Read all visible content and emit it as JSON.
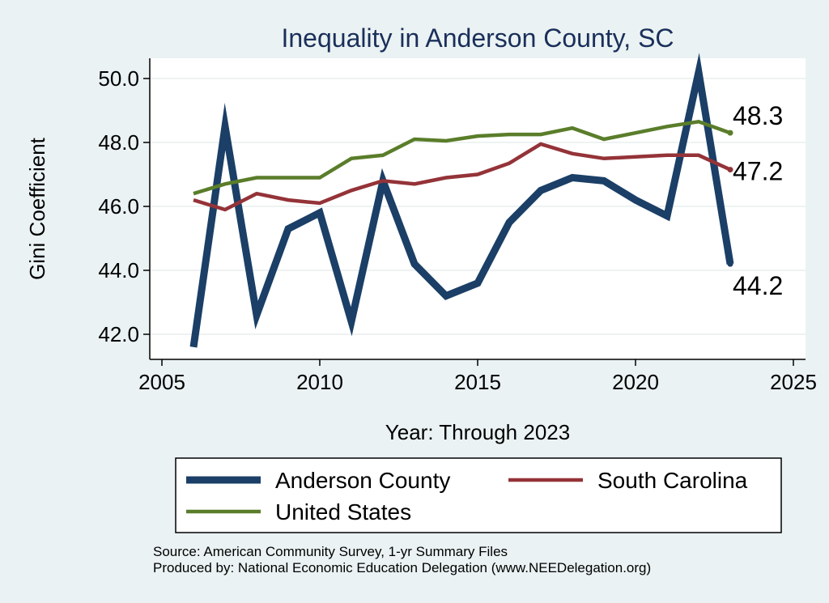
{
  "chart_data": {
    "type": "line",
    "title": "Inequality in Anderson County, SC",
    "xlabel": "Year: Through 2023",
    "ylabel": "Gini Coefficient",
    "xlim": [
      2005,
      2025
    ],
    "ylim": [
      41.5,
      50.6
    ],
    "xticks": [
      2005,
      2010,
      2015,
      2020,
      2025
    ],
    "yticks": [
      42.0,
      44.0,
      46.0,
      48.0,
      50.0
    ],
    "ytick_labels": [
      "42.0",
      "44.0",
      "46.0",
      "48.0",
      "50.0"
    ],
    "grid": true,
    "legend_position": "bottom",
    "series": [
      {
        "name": "Anderson County",
        "color": "#1b3f66",
        "width": 9,
        "end_label": "44.2",
        "x": [
          2006,
          2007,
          2008,
          2009,
          2010,
          2011,
          2012,
          2013,
          2014,
          2015,
          2016,
          2017,
          2018,
          2019,
          2020,
          2021,
          2022,
          2023
        ],
        "values": [
          41.6,
          48.5,
          42.6,
          45.3,
          45.8,
          42.4,
          46.8,
          44.2,
          43.2,
          43.6,
          45.5,
          46.5,
          46.9,
          46.8,
          46.2,
          45.7,
          50.2,
          44.2
        ]
      },
      {
        "name": "South Carolina",
        "color": "#943338",
        "width": 4.5,
        "end_label": "47.2",
        "x": [
          2006,
          2007,
          2008,
          2009,
          2010,
          2011,
          2012,
          2013,
          2014,
          2015,
          2016,
          2017,
          2018,
          2019,
          2020,
          2021,
          2022,
          2023
        ],
        "values": [
          46.2,
          45.9,
          46.4,
          46.2,
          46.1,
          46.5,
          46.8,
          46.7,
          46.9,
          47.0,
          47.35,
          47.95,
          47.65,
          47.5,
          47.55,
          47.6,
          47.6,
          47.15
        ]
      },
      {
        "name": "United States",
        "color": "#5a7d2a",
        "width": 4.5,
        "end_label": "48.3",
        "x": [
          2006,
          2007,
          2008,
          2009,
          2010,
          2011,
          2012,
          2013,
          2014,
          2015,
          2016,
          2017,
          2018,
          2019,
          2020,
          2021,
          2022,
          2023
        ],
        "values": [
          46.4,
          46.7,
          46.9,
          46.9,
          46.9,
          47.5,
          47.6,
          48.1,
          48.05,
          48.2,
          48.25,
          48.25,
          48.45,
          48.1,
          48.3,
          48.5,
          48.65,
          48.3
        ]
      }
    ],
    "end_label_order": [
      "United States",
      "South Carolina",
      "Anderson County"
    ]
  },
  "source": {
    "line1": "Source: American Community Survey, 1-yr Summary Files",
    "line2": "Produced by: National Economic Education Delegation (www.NEEDelegation.org)"
  }
}
